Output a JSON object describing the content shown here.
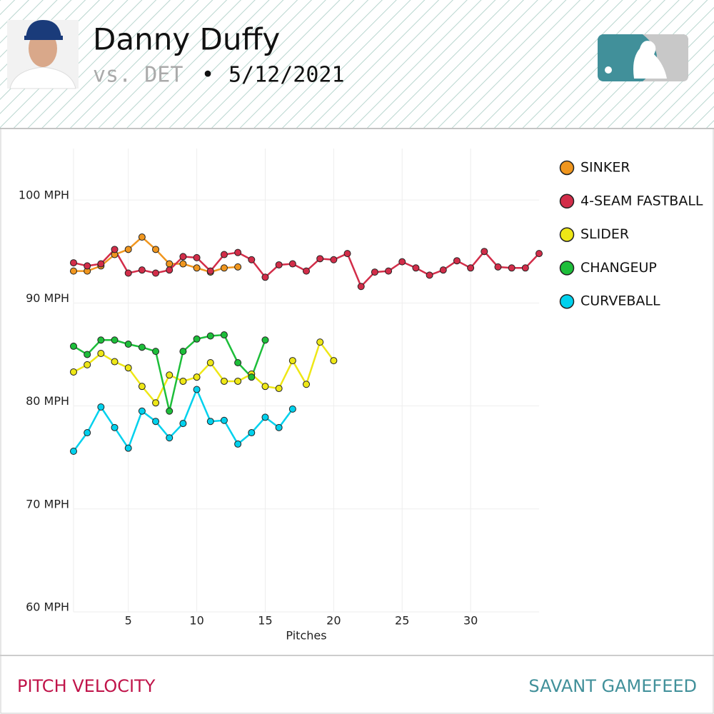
{
  "header": {
    "name": "Danny Duffy",
    "opponent": "vs. DET",
    "separator": "•",
    "date": "5/12/2021"
  },
  "chart_data": {
    "type": "line",
    "x": [
      1,
      2,
      3,
      4,
      5,
      6,
      7,
      8,
      9,
      10,
      11,
      12,
      13,
      14,
      15,
      16,
      17,
      18,
      19,
      20,
      21,
      22,
      23,
      24,
      25,
      26,
      27,
      28,
      29,
      30,
      31,
      32,
      33,
      34,
      35
    ],
    "x_label": "Pitches",
    "xlim": [
      1,
      35
    ],
    "xticks": [
      5,
      10,
      15,
      20,
      25,
      30
    ],
    "ylim": [
      60,
      105
    ],
    "yticks": [
      {
        "value": 60,
        "label": "60 MPH"
      },
      {
        "value": 70,
        "label": "70 MPH"
      },
      {
        "value": 80,
        "label": "80 MPH"
      },
      {
        "value": 90,
        "label": "90 MPH"
      },
      {
        "value": 100,
        "label": "100 MPH"
      }
    ],
    "grid": true,
    "legend": "right",
    "series": [
      {
        "name": "SINKER",
        "color": "#f0961e",
        "values": [
          93.1,
          93.1,
          93.6,
          94.7,
          95.2,
          96.4,
          95.2,
          93.8,
          93.8,
          93.4,
          93.0,
          93.4,
          93.5,
          null,
          null,
          null,
          null,
          null,
          null,
          null,
          null,
          null,
          null,
          null,
          null,
          null,
          null,
          null,
          null,
          null,
          null,
          null,
          null,
          null,
          null
        ]
      },
      {
        "name": "4-SEAM FASTBALL",
        "color": "#d22d49",
        "values": [
          93.9,
          93.6,
          93.8,
          95.2,
          92.9,
          93.2,
          92.9,
          93.2,
          94.5,
          94.4,
          93.1,
          94.7,
          94.9,
          94.2,
          92.5,
          93.7,
          93.8,
          93.1,
          94.3,
          94.2,
          94.8,
          91.6,
          93.0,
          93.1,
          94.0,
          93.4,
          92.7,
          93.2,
          94.1,
          93.4,
          95.0,
          93.5,
          93.4,
          93.4,
          94.8
        ]
      },
      {
        "name": "SLIDER",
        "color": "#eee716",
        "values": [
          83.3,
          84.0,
          85.1,
          84.3,
          83.7,
          81.9,
          80.3,
          83.0,
          82.4,
          82.8,
          84.2,
          82.4,
          82.4,
          83.1,
          81.9,
          81.7,
          84.4,
          82.1,
          86.2,
          84.4,
          null,
          null,
          null,
          null,
          null,
          null,
          null,
          null,
          null,
          null,
          null,
          null,
          null,
          null,
          null
        ]
      },
      {
        "name": "CHANGEUP",
        "color": "#1dbe3a",
        "values": [
          85.8,
          85.0,
          86.4,
          86.4,
          86.0,
          85.7,
          85.3,
          79.5,
          85.3,
          86.5,
          86.8,
          86.9,
          84.2,
          82.8,
          86.4,
          null,
          null,
          null,
          null,
          null,
          null,
          null,
          null,
          null,
          null,
          null,
          null,
          null,
          null,
          null,
          null,
          null,
          null,
          null,
          null
        ]
      },
      {
        "name": "CURVEBALL",
        "color": "#00d1ed",
        "values": [
          75.6,
          77.4,
          79.9,
          77.9,
          75.9,
          79.5,
          78.5,
          76.9,
          78.3,
          81.6,
          78.5,
          78.6,
          76.3,
          77.4,
          78.9,
          77.9,
          79.7,
          null,
          null,
          null,
          null,
          null,
          null,
          null,
          null,
          null,
          null,
          null,
          null,
          null,
          null,
          null,
          null,
          null,
          null
        ]
      }
    ]
  },
  "footer": {
    "left": "PITCH VELOCITY",
    "right": "SAVANT GAMEFEED"
  }
}
